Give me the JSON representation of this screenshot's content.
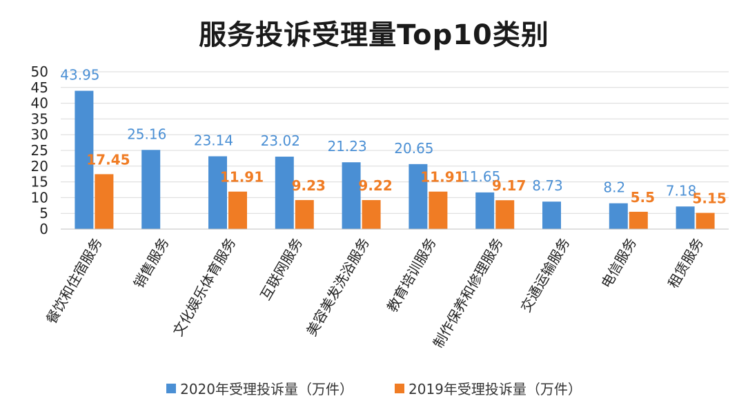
{
  "chart_data": {
    "type": "bar",
    "title": "服务投诉受理量Top10类别",
    "categories": [
      "餐饮和住宿服务",
      "销售服务",
      "文化娱乐体育服务",
      "互联网服务",
      "美容美发洗浴服务",
      "教育培训服务",
      "制作保养和修理服务",
      "交通运输服务",
      "电信服务",
      "租赁服务"
    ],
    "series": [
      {
        "name": "2020年受理投诉量（万件）",
        "color": "#4a8fd4",
        "values": [
          43.95,
          25.16,
          23.14,
          23.02,
          21.23,
          20.65,
          11.65,
          8.73,
          8.2,
          7.18
        ],
        "labels": [
          "43.95",
          "25.16",
          "23.14",
          "23.02",
          "21.23",
          "20.65",
          "11.65",
          "8.73",
          "8.2",
          "7.18"
        ]
      },
      {
        "name": "2019年受理投诉量（万件）",
        "color": "#f07c24",
        "values": [
          17.45,
          null,
          11.91,
          9.23,
          9.22,
          11.91,
          9.17,
          null,
          5.5,
          5.15
        ],
        "labels": [
          "17.45",
          "",
          "11.91",
          "9.23",
          "9.22",
          "11.91",
          "9.17",
          "",
          "5.5",
          "5.15"
        ]
      }
    ],
    "ylim": [
      0,
      50
    ],
    "yticks": [
      "0",
      "5",
      "10",
      "15",
      "20",
      "25",
      "30",
      "35",
      "40",
      "45",
      "50"
    ],
    "grid": true,
    "legend_position": "bottom"
  }
}
